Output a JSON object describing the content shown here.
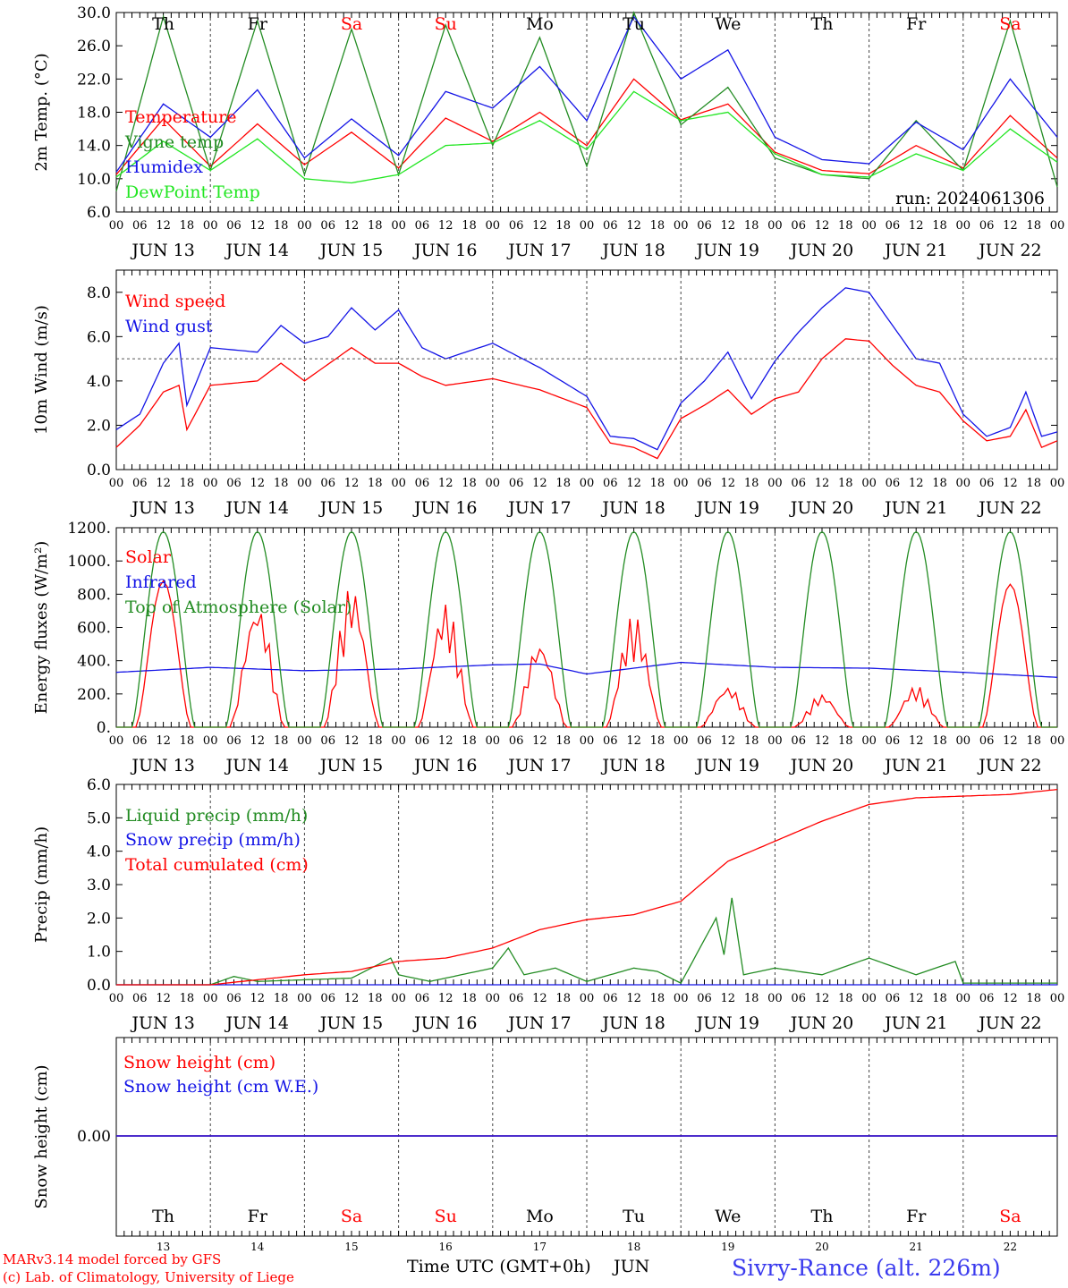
{
  "colors": {
    "red": "#ff0000",
    "green": "#238c23",
    "blue": "#1414e6",
    "lightgreen": "#22e622",
    "purple": "#8a2be2",
    "axis": "#000000"
  },
  "day_labels": [
    "Th",
    "Fr",
    "Sa",
    "Su",
    "Mo",
    "Tu",
    "We",
    "Th",
    "Fr",
    "Sa"
  ],
  "weekend_days": [
    2,
    3,
    9
  ],
  "date_labels": [
    "JUN 13",
    "JUN 14",
    "JUN 15",
    "JUN 16",
    "JUN 17",
    "JUN 18",
    "JUN 19",
    "JUN 20",
    "JUN 21",
    "JUN 22"
  ],
  "hour_labels": [
    "00",
    "06",
    "12",
    "18"
  ],
  "bottom_day_numbers": [
    "13",
    "14",
    "15",
    "16",
    "17",
    "18",
    "19",
    "20",
    "21",
    "22"
  ],
  "footer": {
    "model": "MARv3.14 model forced by GFS",
    "lab": "(c) Lab. of Climatology, University of Liege",
    "xlabel": "Time UTC (GMT+0h)",
    "month": "JUN",
    "station": "Sivry-Rance (alt. 226m)"
  },
  "chart_data": [
    {
      "id": "temp",
      "type": "line",
      "ylabel": "2m Temp. (°C)",
      "ylim": [
        6,
        30
      ],
      "yticks": [
        "6.0",
        "10.0",
        "14.0",
        "18.0",
        "22.0",
        "26.0",
        "30.0"
      ],
      "run_label": "run: 2024061306",
      "x_unit": "hours since 2024-06-13 00 UTC",
      "series": [
        {
          "name": "Temperature",
          "color": "#ff0000",
          "x": [
            0,
            12,
            24,
            36,
            48,
            60,
            72,
            84,
            96,
            108,
            120,
            132,
            144,
            156,
            168,
            180,
            192,
            204,
            216,
            228,
            240
          ],
          "values": [
            10.5,
            17.2,
            11.5,
            16.6,
            11.7,
            15.6,
            11.3,
            17.3,
            14.5,
            18.0,
            14.0,
            22.0,
            17.1,
            19.0,
            13.2,
            11.0,
            10.6,
            14.0,
            11.3,
            17.6,
            12.5
          ]
        },
        {
          "name": "Vigne temp",
          "color": "#238c23",
          "x": [
            0,
            12,
            24,
            36,
            48,
            60,
            72,
            84,
            96,
            108,
            120,
            132,
            144,
            156,
            168,
            180,
            192,
            204,
            216,
            228,
            240
          ],
          "values": [
            8.5,
            29.5,
            11.0,
            29.0,
            10.5,
            28.0,
            10.5,
            28.5,
            14.0,
            27.0,
            11.5,
            30.0,
            16.5,
            21.0,
            12.5,
            10.5,
            10.0,
            17.0,
            11.0,
            29.0,
            9.0
          ]
        },
        {
          "name": "Humidex",
          "color": "#1414e6",
          "x": [
            0,
            12,
            24,
            36,
            48,
            60,
            72,
            84,
            96,
            108,
            120,
            132,
            144,
            156,
            168,
            180,
            192,
            204,
            216,
            228,
            240
          ],
          "values": [
            10.8,
            19.0,
            15.0,
            20.7,
            12.5,
            17.2,
            12.8,
            20.5,
            18.5,
            23.5,
            17.0,
            29.5,
            22.0,
            25.5,
            15.0,
            12.3,
            11.8,
            16.8,
            13.5,
            22.0,
            15.0
          ]
        },
        {
          "name": "DewPoint Temp",
          "color": "#22e622",
          "x": [
            0,
            12,
            24,
            36,
            48,
            60,
            72,
            84,
            96,
            108,
            120,
            132,
            144,
            156,
            168,
            180,
            192,
            204,
            216,
            228,
            240
          ],
          "values": [
            10.2,
            14.5,
            11.0,
            14.8,
            10.0,
            9.5,
            10.5,
            14.0,
            14.3,
            17.0,
            13.5,
            20.5,
            17.0,
            18.0,
            13.0,
            10.5,
            10.2,
            13.0,
            11.0,
            16.0,
            12.0
          ]
        }
      ]
    },
    {
      "id": "wind",
      "type": "line",
      "ylabel": "10m Wind (m/s)",
      "ylim": [
        0,
        9
      ],
      "yticks": [
        "0.0",
        "2.0",
        "4.0",
        "6.0",
        "8.0"
      ],
      "reference_line": 5.0,
      "x_unit": "hours since 2024-06-13 00 UTC",
      "series": [
        {
          "name": "Wind speed",
          "color": "#ff0000",
          "x": [
            0,
            6,
            12,
            16,
            18,
            24,
            36,
            42,
            48,
            60,
            66,
            72,
            78,
            84,
            96,
            108,
            120,
            126,
            132,
            138,
            144,
            150,
            156,
            162,
            168,
            174,
            180,
            186,
            192,
            198,
            204,
            210,
            216,
            222,
            228,
            232,
            236,
            240
          ],
          "values": [
            1.0,
            2.0,
            3.5,
            3.8,
            1.8,
            3.8,
            4.0,
            4.8,
            4.0,
            5.5,
            4.8,
            4.8,
            4.2,
            3.8,
            4.1,
            3.6,
            2.8,
            1.2,
            1.0,
            0.5,
            2.3,
            2.9,
            3.6,
            2.5,
            3.2,
            3.5,
            5.0,
            5.9,
            5.8,
            4.7,
            3.8,
            3.5,
            2.2,
            1.3,
            1.5,
            2.7,
            1.0,
            1.3
          ]
        },
        {
          "name": "Wind gust",
          "color": "#1414e6",
          "x": [
            0,
            6,
            12,
            16,
            18,
            24,
            36,
            42,
            48,
            54,
            60,
            66,
            72,
            78,
            84,
            96,
            108,
            120,
            126,
            132,
            138,
            144,
            150,
            156,
            162,
            168,
            174,
            180,
            186,
            192,
            198,
            204,
            210,
            216,
            222,
            228,
            232,
            236,
            240
          ],
          "values": [
            1.8,
            2.5,
            4.8,
            5.7,
            2.9,
            5.5,
            5.3,
            6.5,
            5.7,
            6.0,
            7.3,
            6.3,
            7.2,
            5.5,
            5.0,
            5.7,
            4.6,
            3.3,
            1.5,
            1.4,
            0.9,
            3.0,
            4.0,
            5.3,
            3.2,
            4.9,
            6.2,
            7.3,
            8.2,
            8.0,
            6.5,
            5.0,
            4.8,
            2.5,
            1.5,
            1.9,
            3.5,
            1.5,
            1.7
          ]
        }
      ]
    },
    {
      "id": "energy",
      "type": "line",
      "ylabel": "Energy fluxes (W/m²)",
      "ylim": [
        0,
        1200
      ],
      "yticks": [
        "0.",
        "200.",
        "400.",
        "600.",
        "800.",
        "1000.",
        "1200."
      ],
      "x_unit": "hours since 2024-06-13 00 UTC",
      "series": [
        {
          "name": "Solar",
          "color": "#ff0000",
          "daily_peaks": [
            880,
            750,
            860,
            750,
            520,
            680,
            250,
            200,
            250,
            860
          ]
        },
        {
          "name": "Infrared",
          "color": "#1414e6",
          "x": [
            0,
            24,
            48,
            72,
            96,
            108,
            120,
            144,
            168,
            192,
            216,
            240
          ],
          "values": [
            330,
            360,
            340,
            350,
            375,
            380,
            320,
            390,
            360,
            355,
            330,
            300
          ]
        },
        {
          "name": "Top of Atmosphere (Solar)",
          "color": "#238c23",
          "daily_peak": 1175
        }
      ]
    },
    {
      "id": "precip",
      "type": "line",
      "ylabel": "Precip (mm/h)",
      "ylim": [
        0,
        6
      ],
      "yticks": [
        "0.0",
        "1.0",
        "2.0",
        "3.0",
        "4.0",
        "5.0",
        "6.0"
      ],
      "x_unit": "hours since 2024-06-13 00 UTC",
      "series": [
        {
          "name": "Liquid precip (mm/h)",
          "color": "#238c23",
          "x": [
            0,
            24,
            30,
            36,
            48,
            60,
            70,
            72,
            80,
            96,
            100,
            104,
            112,
            120,
            132,
            138,
            144,
            153,
            155,
            157,
            160,
            168,
            180,
            192,
            204,
            214,
            216,
            240
          ],
          "values": [
            0,
            0,
            0.25,
            0.1,
            0.15,
            0.2,
            0.8,
            0.3,
            0.1,
            0.5,
            1.1,
            0.3,
            0.5,
            0.1,
            0.5,
            0.4,
            0.05,
            2.0,
            0.9,
            2.6,
            0.3,
            0.5,
            0.3,
            0.8,
            0.3,
            0.7,
            0.05,
            0.05
          ]
        },
        {
          "name": "Snow precip (mm/h)",
          "color": "#1414e6",
          "x": [
            0,
            240
          ],
          "values": [
            0,
            0
          ]
        },
        {
          "name": "Total cumulated (cm)",
          "color": "#ff0000",
          "x": [
            0,
            24,
            48,
            60,
            72,
            84,
            96,
            108,
            120,
            132,
            144,
            156,
            168,
            180,
            192,
            204,
            216,
            228,
            240
          ],
          "values": [
            0,
            0,
            0.3,
            0.4,
            0.7,
            0.8,
            1.1,
            1.65,
            1.95,
            2.1,
            2.5,
            3.7,
            4.3,
            4.9,
            5.4,
            5.6,
            5.65,
            5.7,
            5.85
          ]
        }
      ]
    },
    {
      "id": "snow",
      "type": "line",
      "ylabel": "Snow height (cm)",
      "yticks": [
        "0.00"
      ],
      "x_unit": "hours since 2024-06-13 00 UTC",
      "series": [
        {
          "name": "Snow height (cm)",
          "color": "#ff0000",
          "x": [
            0,
            240
          ],
          "values": [
            0,
            0
          ]
        },
        {
          "name": "Snow height (cm W.E.)",
          "color": "#1414e6",
          "x": [
            0,
            240
          ],
          "values": [
            0,
            0
          ]
        }
      ]
    }
  ]
}
